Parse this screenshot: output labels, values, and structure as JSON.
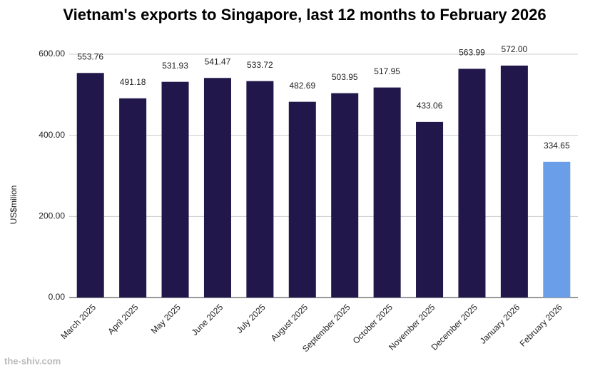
{
  "chart_data": {
    "type": "bar",
    "title": "Vietnam's exports to Singapore, last 12 months to February 2026",
    "y_label": "US$milion",
    "watermark": "the-shiv.com",
    "categories": [
      "March 2025",
      "April 2025",
      "May 2025",
      "June 2025",
      "July 2025",
      "August 2025",
      "September 2025",
      "October 2025",
      "November 2025",
      "December 2025",
      "January 2026",
      "February 2026"
    ],
    "values": [
      553.76,
      491.18,
      531.93,
      541.47,
      533.72,
      482.69,
      503.95,
      517.95,
      433.06,
      563.99,
      572,
      334.65
    ],
    "value_labels": [
      "553.76",
      "491.18",
      "531.93",
      "541.47",
      "533.72",
      "482.69",
      "503.95",
      "517.95",
      "433.06",
      "563.99",
      "572.00",
      "334.65"
    ],
    "colors": [
      "#21174a",
      "#21174a",
      "#21174a",
      "#21174a",
      "#21174a",
      "#21174a",
      "#21174a",
      "#21174a",
      "#21174a",
      "#21174a",
      "#21174a",
      "#6a9ee8"
    ],
    "ylim": [
      0,
      600
    ],
    "yticks": [
      {
        "value": 0,
        "label": "0.00"
      },
      {
        "value": 200,
        "label": "200.00"
      },
      {
        "value": 400,
        "label": "400.00"
      },
      {
        "value": 600,
        "label": "600.00"
      }
    ],
    "grid": true
  }
}
